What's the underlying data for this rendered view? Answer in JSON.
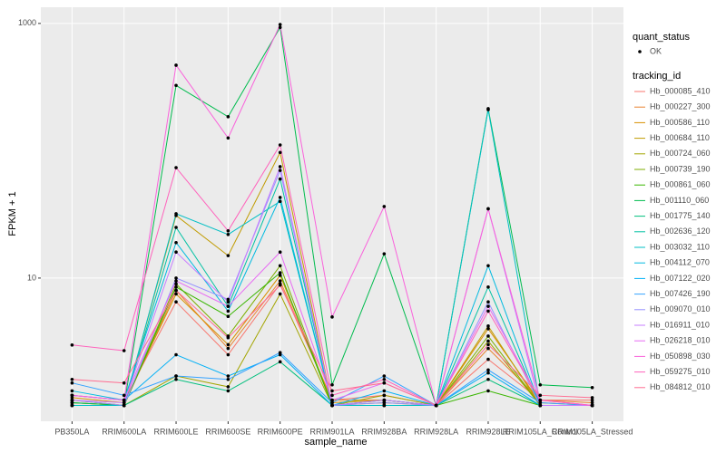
{
  "chart_data": {
    "type": "line",
    "x_label": "sample_name",
    "y_label": "FPKM + 1",
    "categories": [
      "PB350LA",
      "RRIM600LA",
      "RRIM600LE",
      "RRIM600SE",
      "RRIM600PE",
      "RRIM901LA",
      "RRIM928BA",
      "RRIM928LA",
      "RRIM928LE",
      "RRIM105LA_Control",
      "RRIM105LA_Stressed"
    ],
    "log_scale": true,
    "ylim": [
      0.75,
      1340
    ],
    "yticks": [
      10,
      1000
    ],
    "grid": true,
    "point_legend_title": "quant_status",
    "point_legend_label": "OK",
    "point_color": "#000000",
    "legend_title": "tracking_id",
    "series": [
      {
        "name": "Hb_000085_410",
        "color": "#F8766D",
        "values": [
          1.2,
          1.1,
          6.5,
          2.5,
          9.0,
          1.1,
          1.2,
          1.0,
          2.3,
          1.1,
          1.1
        ]
      },
      {
        "name": "Hb_000227_300",
        "color": "#EA8331",
        "values": [
          1.1,
          1.0,
          8.0,
          2.8,
          9.5,
          1.1,
          1.1,
          1.0,
          2.8,
          1.1,
          1.05
        ]
      },
      {
        "name": "Hb_000586_110",
        "color": "#D89000",
        "values": [
          1.15,
          1.05,
          7.5,
          3.0,
          10.5,
          1.05,
          1.1,
          1.0,
          4.0,
          1.05,
          1.0
        ]
      },
      {
        "name": "Hb_000684_110",
        "color": "#C09B00",
        "values": [
          1.1,
          1.0,
          31,
          15,
          97,
          1.0,
          1.05,
          1.0,
          4.2,
          1.0,
          1.0
        ]
      },
      {
        "name": "Hb_000724_060",
        "color": "#A3A500",
        "values": [
          1.05,
          1.0,
          1.7,
          1.4,
          7.5,
          1.0,
          1.2,
          1.0,
          3.2,
          1.0,
          1.0
        ]
      },
      {
        "name": "Hb_000739_190",
        "color": "#7CAE00",
        "values": [
          1.05,
          1.0,
          9.0,
          3.5,
          12.5,
          1.0,
          1.1,
          1.0,
          3.5,
          1.0,
          1.0
        ]
      },
      {
        "name": "Hb_000861_060",
        "color": "#39B600",
        "values": [
          1.0,
          1.0,
          8.5,
          5.0,
          11.0,
          1.0,
          1.0,
          1.0,
          1.3,
          1.0,
          1.0
        ]
      },
      {
        "name": "Hb_001110_060",
        "color": "#00BB4E",
        "values": [
          1.05,
          1.0,
          326,
          185,
          930,
          1.45,
          15.5,
          1.0,
          214,
          1.45,
          1.38
        ]
      },
      {
        "name": "Hb_001775_140",
        "color": "#00BF7D",
        "values": [
          1.0,
          1.0,
          1.6,
          1.3,
          2.2,
          1.0,
          1.0,
          1.0,
          1.6,
          1.0,
          1.0
        ]
      },
      {
        "name": "Hb_002636_120",
        "color": "#00C1A3",
        "values": [
          1.0,
          1.0,
          25,
          6,
          60,
          1.0,
          1.0,
          1.0,
          8.5,
          1.0,
          1.0
        ]
      },
      {
        "name": "Hb_003032_110",
        "color": "#00BFC4",
        "values": [
          1.0,
          1.0,
          32,
          22,
          40,
          1.0,
          1.0,
          1.0,
          210,
          1.0,
          1.0
        ]
      },
      {
        "name": "Hb_004112_070",
        "color": "#00BAE0",
        "values": [
          1.3,
          1.1,
          19,
          5.5,
          43,
          1.0,
          1.1,
          1.0,
          12.5,
          1.0,
          1.0
        ]
      },
      {
        "name": "Hb_007122_020",
        "color": "#00B0F6",
        "values": [
          1.2,
          1.1,
          2.5,
          1.7,
          2.5,
          1.0,
          1.3,
          1.0,
          1.8,
          1.0,
          1.0
        ]
      },
      {
        "name": "Hb_007426_190",
        "color": "#35A2FF",
        "values": [
          1.5,
          1.2,
          1.7,
          1.6,
          2.6,
          1.05,
          1.7,
          1.0,
          1.9,
          1.05,
          1.0
        ]
      },
      {
        "name": "Hb_009070_010",
        "color": "#9590FF",
        "values": [
          1.1,
          1.0,
          10,
          6.8,
          70,
          1.0,
          1.05,
          1.0,
          6.5,
          1.0,
          1.0
        ]
      },
      {
        "name": "Hb_016911_010",
        "color": "#C77CFF",
        "values": [
          1.1,
          1.05,
          16,
          6.5,
          75,
          1.0,
          1.1,
          1.0,
          35,
          1.0,
          1.0
        ]
      },
      {
        "name": "Hb_026218_010",
        "color": "#E76BF3",
        "values": [
          1.2,
          1.1,
          9.5,
          6.0,
          16,
          1.1,
          1.5,
          1.0,
          6.0,
          1.1,
          1.0
        ]
      },
      {
        "name": "Hb_050898_030",
        "color": "#FA62DB",
        "values": [
          1.2,
          1.1,
          470,
          126,
          980,
          4.95,
          36.5,
          1.0,
          35,
          1.1,
          1.0
        ]
      },
      {
        "name": "Hb_059275_010",
        "color": "#FF62BC",
        "values": [
          2.98,
          2.69,
          73.7,
          23.5,
          111,
          1.2,
          1.6,
          1.0,
          5.5,
          1.1,
          1.0
        ]
      },
      {
        "name": "Hb_084812_010",
        "color": "#FF6C91",
        "values": [
          1.6,
          1.5,
          8.0,
          3.4,
          8.8,
          1.3,
          1.5,
          1.0,
          3.0,
          1.2,
          1.15
        ]
      }
    ]
  }
}
